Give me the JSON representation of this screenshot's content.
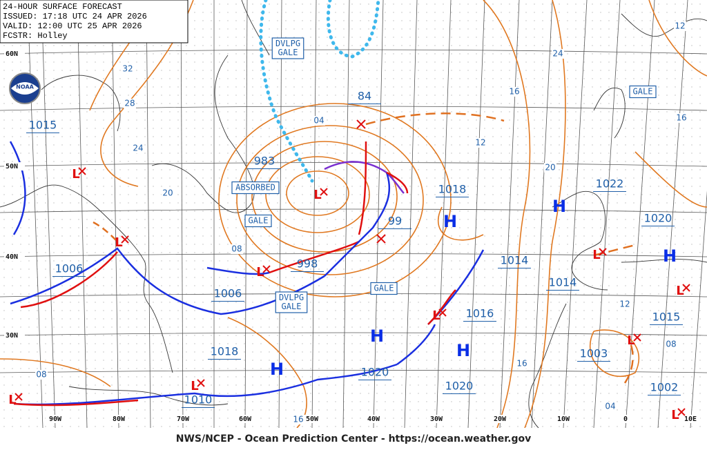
{
  "header": {
    "lines": [
      "24-HOUR SURFACE FORECAST",
      "ISSUED: 17:18 UTC 24 APR 2026",
      "VALID:  12:00 UTC 25 APR 2026",
      "FCSTR:  Holley"
    ]
  },
  "footer": "NWS/NCEP - Ocean Prediction Center - https://ocean.weather.gov",
  "logo": "NOAA",
  "lat_labels": [
    "60N",
    "50N",
    "40N",
    "30N"
  ],
  "lon_labels": [
    "90W",
    "80W",
    "70W",
    "60W",
    "50W",
    "40W",
    "30W",
    "20W",
    "10W",
    "0",
    "10E"
  ],
  "pressure_labels": [
    "1015",
    "983",
    "84",
    "1018",
    "1022",
    "1020",
    "1006",
    "998",
    "1006",
    "1014",
    "1014",
    "1016",
    "1015",
    "1018",
    "1003",
    "1020",
    "1020",
    "1002",
    "1010",
    "99"
  ],
  "isobar_labels": [
    "32",
    "28",
    "24",
    "20",
    "04",
    "12",
    "16",
    "24",
    "20",
    "12",
    "16",
    "08",
    "12",
    "08",
    "16",
    "08",
    "16",
    "04"
  ],
  "boxed_labels": [
    [
      "DVLPG",
      "GALE"
    ],
    [
      "GALE"
    ],
    [
      "ABSORBED"
    ],
    [
      "GALE"
    ],
    [
      "GALE"
    ],
    [
      "DVLPG",
      "GALE"
    ]
  ],
  "highs": [
    "H",
    "H",
    "H",
    "H",
    "H",
    "H"
  ],
  "lows": [
    "L",
    "L",
    "L",
    "L",
    "L",
    "L",
    "L",
    "L",
    "L",
    "L",
    "L"
  ]
}
